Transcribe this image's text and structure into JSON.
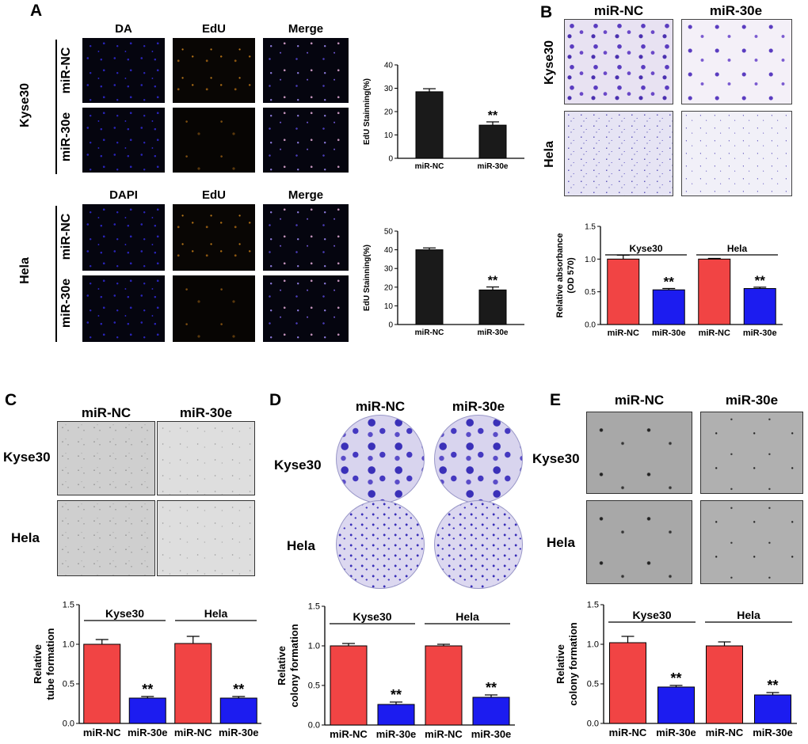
{
  "panels": {
    "A": {
      "letter": "A",
      "top": {
        "channels": [
          "DA",
          "EdU",
          "Merge"
        ],
        "cell": "Kyse30",
        "rows": [
          "miR-NC",
          "miR-30e"
        ]
      },
      "bottom": {
        "channels": [
          "DAPI",
          "EdU",
          "Merge"
        ],
        "cell": "Hela",
        "rows": [
          "miR-NC",
          "miR-30e"
        ]
      }
    },
    "B": {
      "letter": "B",
      "cols": [
        "miR-NC",
        "miR-30e"
      ],
      "rows": [
        "Kyse30",
        "Hela"
      ]
    },
    "C": {
      "letter": "C",
      "cols": [
        "miR-NC",
        "miR-30e"
      ],
      "rows": [
        "Kyse30",
        "Hela"
      ]
    },
    "D": {
      "letter": "D",
      "cols": [
        "miR-NC",
        "miR-30e"
      ],
      "rows": [
        "Kyse30",
        "Hela"
      ]
    },
    "E": {
      "letter": "E",
      "cols": [
        "miR-NC",
        "miR-30e"
      ],
      "rows": [
        "Kyse30",
        "Hela"
      ]
    }
  },
  "colors": {
    "red": "#f14444",
    "blue": "#1c1cf0",
    "black": "#1a1a1a"
  },
  "chart_data": [
    {
      "id": "A-top",
      "type": "bar",
      "categories": [
        "miR-NC",
        "miR-30e"
      ],
      "values": [
        28.5,
        14.2
      ],
      "errors": [
        1.3,
        1.4
      ],
      "significance": [
        "",
        "**"
      ],
      "ylabel": "EdU Stainning(%)",
      "ylim": [
        0,
        40
      ],
      "yticks": [
        "0",
        "10",
        "20",
        "30",
        "40"
      ],
      "color": "#1a1a1a"
    },
    {
      "id": "A-bottom",
      "type": "bar",
      "categories": [
        "miR-NC",
        "miR-30e"
      ],
      "values": [
        40,
        18.5
      ],
      "errors": [
        1.0,
        1.6
      ],
      "significance": [
        "",
        "**"
      ],
      "ylabel": "EdU Stainning(%)",
      "ylim": [
        0,
        50
      ],
      "yticks": [
        "0",
        "10",
        "20",
        "30",
        "40",
        "50"
      ],
      "color": "#1a1a1a"
    },
    {
      "id": "B",
      "type": "bar",
      "categories": [
        "miR-NC",
        "miR-30e",
        "miR-NC",
        "miR-30e"
      ],
      "groups": [
        "Kyse30",
        "Hela"
      ],
      "values": [
        1.0,
        0.53,
        1.0,
        0.55
      ],
      "errors": [
        0.06,
        0.02,
        0.01,
        0.02
      ],
      "significance": [
        "",
        "**",
        "",
        "**"
      ],
      "ylabel": "Relative absorbance\n(OD 570)",
      "ylim": [
        0,
        1.5
      ],
      "yticks": [
        "0.0",
        "0.5",
        "1.0",
        "1.5"
      ]
    },
    {
      "id": "C",
      "type": "bar",
      "categories": [
        "miR-NC",
        "miR-30e",
        "miR-NC",
        "miR-30e"
      ],
      "groups": [
        "Kyse30",
        "Hela"
      ],
      "values": [
        1.0,
        0.32,
        1.01,
        0.32
      ],
      "errors": [
        0.06,
        0.02,
        0.09,
        0.02
      ],
      "significance": [
        "",
        "**",
        "",
        "**"
      ],
      "ylabel": "Relative\ntube formation",
      "ylim": [
        0,
        1.5
      ],
      "yticks": [
        "0.0",
        "0.5",
        "1.0",
        "1.5"
      ]
    },
    {
      "id": "D",
      "type": "bar",
      "categories": [
        "miR-NC",
        "miR-30e",
        "miR-NC",
        "miR-30e"
      ],
      "groups": [
        "Kyse30",
        "Hela"
      ],
      "values": [
        1.0,
        0.26,
        1.0,
        0.35
      ],
      "errors": [
        0.03,
        0.03,
        0.02,
        0.03
      ],
      "significance": [
        "",
        "**",
        "",
        "**"
      ],
      "ylabel": "Relative\ncolony formation",
      "ylim": [
        0,
        1.5
      ],
      "yticks": [
        "0.0",
        "0.5",
        "1.0",
        "1.5"
      ]
    },
    {
      "id": "E",
      "type": "bar",
      "categories": [
        "miR-NC",
        "miR-30e",
        "miR-NC",
        "miR-30e"
      ],
      "groups": [
        "Kyse30",
        "Hela"
      ],
      "values": [
        1.02,
        0.46,
        0.98,
        0.36
      ],
      "errors": [
        0.08,
        0.02,
        0.05,
        0.03
      ],
      "significance": [
        "",
        "**",
        "",
        "**"
      ],
      "ylabel": "Relative\ncolony formation",
      "ylim": [
        0,
        1.5
      ],
      "yticks": [
        "0.0",
        "0.5",
        "1.0",
        "1.5"
      ]
    }
  ]
}
